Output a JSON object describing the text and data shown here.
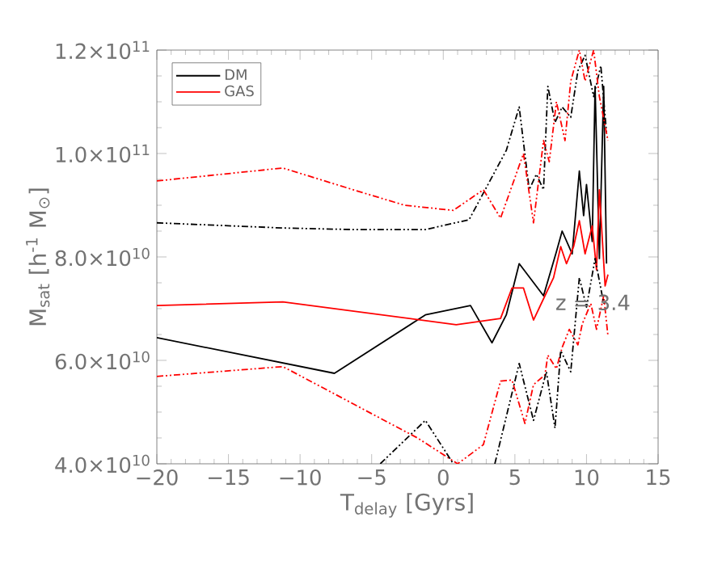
{
  "chart_data": {
    "type": "line",
    "xlabel": "T$_{delay}$ [Gyrs]",
    "ylabel": "M$_{sat}$ [h$^{-1}$ M$_{⊙}$]",
    "xlim": [
      -20,
      15
    ],
    "xticks": [
      {
        "value": -20,
        "label": "−20"
      },
      {
        "value": -15,
        "label": "−15"
      },
      {
        "value": -10,
        "label": "−10"
      },
      {
        "value": -5,
        "label": "−5"
      },
      0,
      5,
      10,
      15
    ],
    "ylim": [
      40000000000.0,
      120000000000.0
    ],
    "yticks": [
      {
        "value": 40000000000.0,
        "label": "4.0×10$^{10}$"
      },
      {
        "value": 60000000000.0,
        "label": "6.0×10$^{10}$"
      },
      {
        "value": 80000000000.0,
        "label": "8.0×10$^{10}$"
      },
      {
        "value": 100000000000.0,
        "label": "1.0×10$^{11}$"
      },
      {
        "value": 120000000000.0,
        "label": "1.2×10$^{11}$"
      }
    ],
    "legend": "top left",
    "annotations": [
      "z = 3.4"
    ],
    "series": [
      {
        "name": "DM",
        "color": "#000000",
        "line_style": "solid",
        "x": [
          -20,
          -7.6,
          -1.25,
          1.9,
          3.4,
          4.4,
          5.3,
          7.0,
          7.9,
          8.3,
          9.0,
          9.5,
          9.8,
          10.0,
          10.4,
          10.6,
          10.9,
          11.2,
          11.4
        ],
        "values": [
          64400000000.0,
          57500000000.0,
          68800000000.0,
          70600000000.0,
          63400000000.0,
          68800000000.0,
          78700000000.0,
          72500000000.0,
          81000000000.0,
          85000000000.0,
          80600000000.0,
          96600000000.0,
          88000000000.0,
          94000000000.0,
          83000000000.0,
          113000000000.0,
          79700000000.0,
          113000000000.0,
          78700000000.0
        ]
      },
      {
        "name": "GAS",
        "color": "#ff0000",
        "line_style": "solid",
        "x": [
          -20,
          -11.2,
          0.9,
          4.0,
          4.8,
          5.6,
          6.3,
          7.1,
          7.7,
          8.2,
          8.6,
          9.1,
          9.5,
          9.9,
          10.4,
          10.7,
          10.9,
          11.3,
          11.5
        ],
        "values": [
          70600000000.0,
          71300000000.0,
          66900000000.0,
          68100000000.0,
          74000000000.0,
          74000000000.0,
          67800000000.0,
          72500000000.0,
          76000000000.0,
          82000000000.0,
          78700000000.0,
          82000000000.0,
          87000000000.0,
          80600000000.0,
          86000000000.0,
          77500000000.0,
          93000000000.0,
          74400000000.0,
          76600000000.0
        ]
      },
      {
        "color": "#000000",
        "line_style": "dashed",
        "x": [
          -20,
          -11.2,
          -6.3,
          -1.25,
          1.8,
          4.4,
          5.3,
          6.0,
          6.5,
          7.0,
          7.3,
          7.8,
          8.3,
          8.9,
          9.4,
          9.9,
          10.5,
          11.0,
          11.4
        ],
        "values": [
          86600000000.0,
          85600000000.0,
          85300000000.0,
          85300000000.0,
          87200000000.0,
          100600000000.0,
          109000000000.0,
          93000000000.0,
          96000000000.0,
          93000000000.0,
          113000000000.0,
          106000000000.0,
          109000000000.0,
          107000000000.0,
          116000000000.0,
          119000000000.0,
          111000000000.0,
          117000000000.0,
          104000000000.0
        ]
      },
      {
        "color": "#ff0000",
        "line_style": "dashed",
        "x": [
          -20,
          -11.2,
          -6.3,
          -2.7,
          0.7,
          2.8,
          4.0,
          5.6,
          6.3,
          7.0,
          7.4,
          7.9,
          8.5,
          8.9,
          9.5,
          9.9,
          10.5,
          10.9,
          11.5
        ],
        "values": [
          94700000000.0,
          97200000000.0,
          93000000000.0,
          90000000000.0,
          89000000000.0,
          93000000000.0,
          87500000000.0,
          100000000000.0,
          86600000000.0,
          102500000000.0,
          98400000000.0,
          110000000000.0,
          102500000000.0,
          114000000000.0,
          120000000000.0,
          114000000000.0,
          120000000000.0,
          111000000000.0,
          102500000000.0
        ]
      },
      {
        "color": "#ff0000",
        "line_style": "dashed",
        "x": [
          -20,
          -11.2,
          -1.8,
          1.0,
          2.8,
          4.0,
          4.8,
          5.7,
          6.3,
          7.1,
          7.3,
          7.9,
          8.3,
          8.8,
          9.4,
          9.7,
          10.3,
          10.7,
          11.2,
          11.5
        ],
        "values": [
          56900000000.0,
          58800000000.0,
          45000000000.0,
          40000000000.0,
          43700000000.0,
          56000000000.0,
          56200000000.0,
          47800000000.0,
          55300000000.0,
          57200000000.0,
          61000000000.0,
          58400000000.0,
          62500000000.0,
          66000000000.0,
          63000000000.0,
          67000000000.0,
          71000000000.0,
          66000000000.0,
          72500000000.0,
          64700000000.0
        ]
      },
      {
        "color": "#000000",
        "line_style": "dashed",
        "x": [
          -4.4,
          -1.25,
          0.7,
          2.0,
          3.6,
          5.3,
          6.3,
          7.2,
          7.8,
          8.2,
          8.9,
          9.5,
          10.0,
          10.6,
          11.2
        ],
        "values": [
          40000000000.0,
          48400000000.0,
          40000000000.0,
          null,
          40000000000.0,
          59400000000.0,
          48400000000.0,
          57800000000.0,
          46900000000.0,
          61900000000.0,
          57800000000.0,
          76000000000.0,
          70300000000.0,
          79700000000.0,
          71000000000.0
        ]
      }
    ]
  }
}
